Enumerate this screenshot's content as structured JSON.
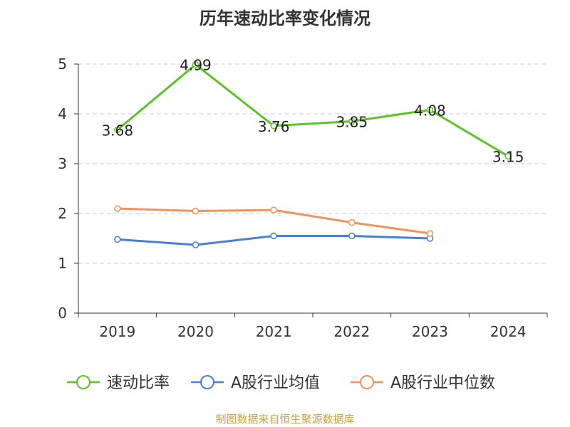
{
  "chart_data": {
    "type": "line",
    "title": "历年速动比率变化情况",
    "categories": [
      "2019",
      "2020",
      "2021",
      "2022",
      "2023",
      "2024"
    ],
    "y_ticks": [
      "0",
      "1",
      "2",
      "3",
      "4",
      "5"
    ],
    "ylim": [
      0,
      5
    ],
    "grid": true,
    "legend_position": "bottom",
    "series": [
      {
        "name": "速动比率",
        "color": "#5bc425",
        "values": [
          3.68,
          4.99,
          3.76,
          3.85,
          4.08,
          3.15
        ],
        "labels": [
          "3.68",
          "4.99",
          "3.76",
          "3.85",
          "4.08",
          "3.15"
        ]
      },
      {
        "name": "A股行业均值",
        "color": "#4a7fd6",
        "values": [
          1.48,
          1.37,
          1.55,
          1.55,
          1.5,
          null
        ]
      },
      {
        "name": "A股行业中位数",
        "color": "#f4925d",
        "values": [
          2.1,
          2.05,
          2.07,
          1.82,
          1.6,
          null
        ]
      }
    ]
  },
  "source": "制图数据来自恒生聚源数据库"
}
